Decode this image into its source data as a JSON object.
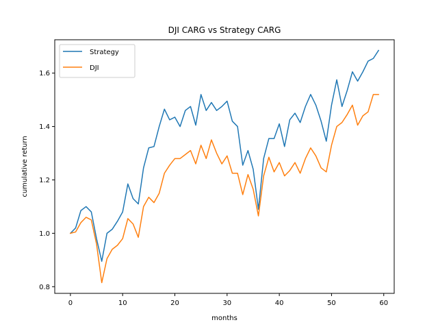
{
  "chart_data": {
    "type": "line",
    "title": "DJI CARG vs Strategy CARG",
    "xlabel": "months",
    "ylabel": "cumulative return",
    "xlim": [
      -3,
      62
    ],
    "ylim": [
      0.775,
      1.725
    ],
    "xticks": [
      0,
      10,
      20,
      30,
      40,
      50,
      60
    ],
    "yticks": [
      0.8,
      1.0,
      1.2,
      1.4,
      1.6
    ],
    "ytick_labels": [
      "0.8",
      "1.0",
      "1.2",
      "1.4",
      "1.6"
    ],
    "grid": false,
    "legend_position": "top-left",
    "x": [
      0,
      1,
      2,
      3,
      4,
      5,
      6,
      7,
      8,
      9,
      10,
      11,
      12,
      13,
      14,
      15,
      16,
      17,
      18,
      19,
      20,
      21,
      22,
      23,
      24,
      25,
      26,
      27,
      28,
      29,
      30,
      31,
      32,
      33,
      34,
      35,
      36,
      37,
      38,
      39,
      40,
      41,
      42,
      43,
      44,
      45,
      46,
      47,
      48,
      49,
      50,
      51,
      52,
      53,
      54,
      55,
      56,
      57,
      58,
      59
    ],
    "series": [
      {
        "name": "Strategy",
        "color": "#1f77b4",
        "values": [
          1.0,
          1.02,
          1.085,
          1.1,
          1.08,
          0.98,
          0.895,
          1.0,
          1.015,
          1.045,
          1.08,
          1.185,
          1.13,
          1.11,
          1.245,
          1.32,
          1.325,
          1.4,
          1.465,
          1.425,
          1.435,
          1.4,
          1.46,
          1.475,
          1.405,
          1.52,
          1.46,
          1.49,
          1.46,
          1.475,
          1.495,
          1.42,
          1.4,
          1.255,
          1.31,
          1.24,
          1.09,
          1.28,
          1.355,
          1.355,
          1.41,
          1.325,
          1.425,
          1.45,
          1.415,
          1.475,
          1.52,
          1.48,
          1.42,
          1.345,
          1.48,
          1.575,
          1.475,
          1.535,
          1.605,
          1.57,
          1.605,
          1.645,
          1.655,
          1.685
        ]
      },
      {
        "name": "DJI",
        "color": "#ff7f0e",
        "values": [
          1.0,
          1.005,
          1.04,
          1.06,
          1.05,
          0.96,
          0.815,
          0.905,
          0.94,
          0.955,
          0.98,
          1.055,
          1.035,
          0.985,
          1.1,
          1.135,
          1.115,
          1.15,
          1.225,
          1.255,
          1.28,
          1.28,
          1.295,
          1.31,
          1.26,
          1.33,
          1.28,
          1.35,
          1.3,
          1.26,
          1.29,
          1.225,
          1.225,
          1.145,
          1.22,
          1.165,
          1.065,
          1.215,
          1.285,
          1.23,
          1.265,
          1.215,
          1.235,
          1.265,
          1.225,
          1.28,
          1.32,
          1.29,
          1.245,
          1.23,
          1.33,
          1.4,
          1.415,
          1.445,
          1.48,
          1.405,
          1.44,
          1.455,
          1.52,
          1.52
        ]
      }
    ]
  }
}
